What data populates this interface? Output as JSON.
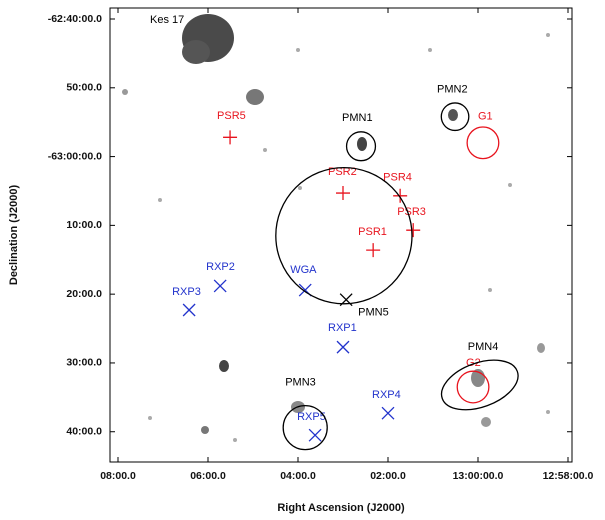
{
  "chart_data": {
    "type": "scatter",
    "xlabel": "Right Ascension (J2000)",
    "ylabel": "Declination (J2000)",
    "annotations": [
      "Kes 17"
    ],
    "xlim": [
      788.178,
      777.911
    ],
    "ylim": [
      -3824.4,
      -3758.4
    ],
    "xticks": [
      {
        "value": 788,
        "label": "08:00.0"
      },
      {
        "value": 786,
        "label": "06:00.0"
      },
      {
        "value": 784,
        "label": "04:00.0"
      },
      {
        "value": 782,
        "label": "02:00.0"
      },
      {
        "value": 780,
        "label": "13:00:00.0"
      },
      {
        "value": 778,
        "label": "12:58:00.0"
      }
    ],
    "yticks": [
      {
        "value": -3760,
        "label": "-62:40:00.0"
      },
      {
        "value": -3770,
        "label": "50:00.0"
      },
      {
        "value": -3780,
        "label": "-63:00:00.0"
      },
      {
        "value": -3790,
        "label": "10:00.0"
      },
      {
        "value": -3800,
        "label": "20:00.0"
      },
      {
        "value": -3810,
        "label": "30:00.0"
      },
      {
        "value": -3820,
        "label": "40:00.0"
      }
    ],
    "points": [
      {
        "name": "PSR5",
        "marker": "plus",
        "color": "#e8141e",
        "x": 785.51,
        "y": -3777.2
      },
      {
        "name": "PSR2",
        "marker": "plus",
        "color": "#e8141e",
        "x": 783.0,
        "y": -3785.3
      },
      {
        "name": "PSR4",
        "marker": "plus",
        "color": "#e8141e",
        "x": 781.73,
        "y": -3785.7
      },
      {
        "name": "PSR3",
        "marker": "plus",
        "color": "#e8141e",
        "x": 781.44,
        "y": -3790.7
      },
      {
        "name": "PSR1",
        "marker": "plus",
        "color": "#e8141e",
        "x": 782.33,
        "y": -3793.6
      },
      {
        "name": "G1",
        "marker": "circle",
        "color": "#e8141e",
        "x": 779.89,
        "y": -3778.0,
        "r": 2.3
      },
      {
        "name": "G2",
        "marker": "circle",
        "color": "#e8141e",
        "x": 780.11,
        "y": -3813.5,
        "r": 2.3
      },
      {
        "name": "RXP2",
        "marker": "cross",
        "color": "#2233cc",
        "x": 785.73,
        "y": -3798.8
      },
      {
        "name": "RXP3",
        "marker": "cross",
        "color": "#2233cc",
        "x": 786.42,
        "y": -3802.3
      },
      {
        "name": "WGA",
        "marker": "cross",
        "color": "#2233cc",
        "x": 783.84,
        "y": -3799.4
      },
      {
        "name": "PMN5",
        "marker": "cross",
        "color": "#000000",
        "x": 782.93,
        "y": -3800.8
      },
      {
        "name": "RXP1",
        "marker": "cross",
        "color": "#2233cc",
        "x": 783.0,
        "y": -3807.7
      },
      {
        "name": "RXP4",
        "marker": "cross",
        "color": "#2233cc",
        "x": 782.0,
        "y": -3817.3
      },
      {
        "name": "RXP5",
        "marker": "cross",
        "color": "#2233cc",
        "x": 783.62,
        "y": -3820.5
      },
      {
        "name": "PMN1",
        "marker": "circle",
        "color": "#000000",
        "x": 782.6,
        "y": -3778.5,
        "r": 2.1
      },
      {
        "name": "PMN2",
        "marker": "circle",
        "color": "#000000",
        "x": 780.51,
        "y": -3774.2,
        "r": 2.0
      },
      {
        "name": "PMN3",
        "marker": "circle",
        "color": "#000000",
        "x": 783.84,
        "y": -3819.4,
        "r": 3.2
      },
      {
        "name": "PMN4",
        "marker": "ellipse",
        "color": "#000000",
        "x": 779.96,
        "y": -3813.2,
        "rx": 5.8,
        "ry": 3.2
      },
      {
        "marker": "circle",
        "color": "#000000",
        "x": 782.98,
        "y": -3791.5,
        "r": 9.9
      }
    ]
  }
}
